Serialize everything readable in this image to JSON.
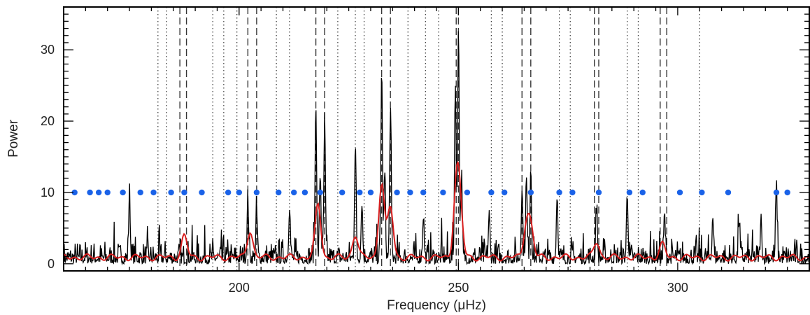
{
  "chart_data": {
    "type": "line",
    "title": "",
    "xlabel": "Frequency (μHz)",
    "ylabel": "Power",
    "xlim": [
      160,
      330
    ],
    "ylim": [
      -1,
      36
    ],
    "x_ticks": [
      200,
      250,
      300
    ],
    "y_ticks": [
      0,
      10,
      20,
      30
    ],
    "grid": false,
    "legend": "none",
    "colors": {
      "spectrum": "#000000",
      "smoothed": "#d81e1e",
      "points": "#1a62e8",
      "vlines": "#333333"
    },
    "dotted_lines_x": [
      181.5,
      183.5,
      194,
      196.5,
      199.5,
      208.5,
      211.5,
      222.5,
      226.5,
      228.5,
      238.5,
      242.5,
      245.5,
      257.5,
      260,
      273,
      275.5,
      288.5,
      291,
      305
    ],
    "dashed_lines_x": [
      186.5,
      188,
      202,
      204,
      217.5,
      219.5,
      232.5,
      234.5,
      249.5,
      250,
      264.5,
      266.5,
      281,
      282,
      296,
      297.5
    ],
    "blue_points": {
      "y": 10,
      "x": [
        162.5,
        166,
        168,
        170,
        173.5,
        177.5,
        180.5,
        184.5,
        187.5,
        191.5,
        197.5,
        200,
        204,
        209,
        212.5,
        215,
        218.5,
        223.5,
        227.5,
        230,
        236,
        239,
        242,
        246.5,
        252,
        257.5,
        260.5,
        266.5,
        273,
        276,
        282,
        289,
        292,
        300.5,
        305.5,
        311.5,
        322.5,
        325
      ]
    },
    "peaks": [
      {
        "x": 175,
        "height": 9
      },
      {
        "x": 202,
        "height": 8
      },
      {
        "x": 204,
        "height": 6.5
      },
      {
        "x": 211.5,
        "height": 7.5
      },
      {
        "x": 217.5,
        "height": 22
      },
      {
        "x": 218.5,
        "height": 12
      },
      {
        "x": 219.5,
        "height": 19
      },
      {
        "x": 226.5,
        "height": 16
      },
      {
        "x": 228,
        "height": 8
      },
      {
        "x": 232.5,
        "height": 27
      },
      {
        "x": 233.2,
        "height": 12
      },
      {
        "x": 234.5,
        "height": 21
      },
      {
        "x": 242,
        "height": 6
      },
      {
        "x": 249.3,
        "height": 25
      },
      {
        "x": 250,
        "height": 33
      },
      {
        "x": 250.7,
        "height": 11
      },
      {
        "x": 257,
        "height": 6
      },
      {
        "x": 264.5,
        "height": 10
      },
      {
        "x": 265.5,
        "height": 11
      },
      {
        "x": 266.5,
        "height": 13
      },
      {
        "x": 272.5,
        "height": 9
      },
      {
        "x": 281.5,
        "height": 7
      },
      {
        "x": 288.5,
        "height": 9
      },
      {
        "x": 297,
        "height": 6
      },
      {
        "x": 308,
        "height": 6
      },
      {
        "x": 314,
        "height": 5.5
      },
      {
        "x": 319,
        "height": 5
      },
      {
        "x": 322.5,
        "height": 10
      }
    ],
    "smoothed_bumps": [
      {
        "x": 187.5,
        "height": 3
      },
      {
        "x": 202.5,
        "height": 3.8
      },
      {
        "x": 218,
        "height": 7.5
      },
      {
        "x": 226.5,
        "height": 3.2
      },
      {
        "x": 232.5,
        "height": 10.5
      },
      {
        "x": 234.5,
        "height": 7
      },
      {
        "x": 249.5,
        "height": 9
      },
      {
        "x": 250.3,
        "height": 7
      },
      {
        "x": 265.5,
        "height": 4.5
      },
      {
        "x": 266.5,
        "height": 4
      },
      {
        "x": 281.5,
        "height": 2.2
      },
      {
        "x": 296.5,
        "height": 1.8
      }
    ]
  }
}
